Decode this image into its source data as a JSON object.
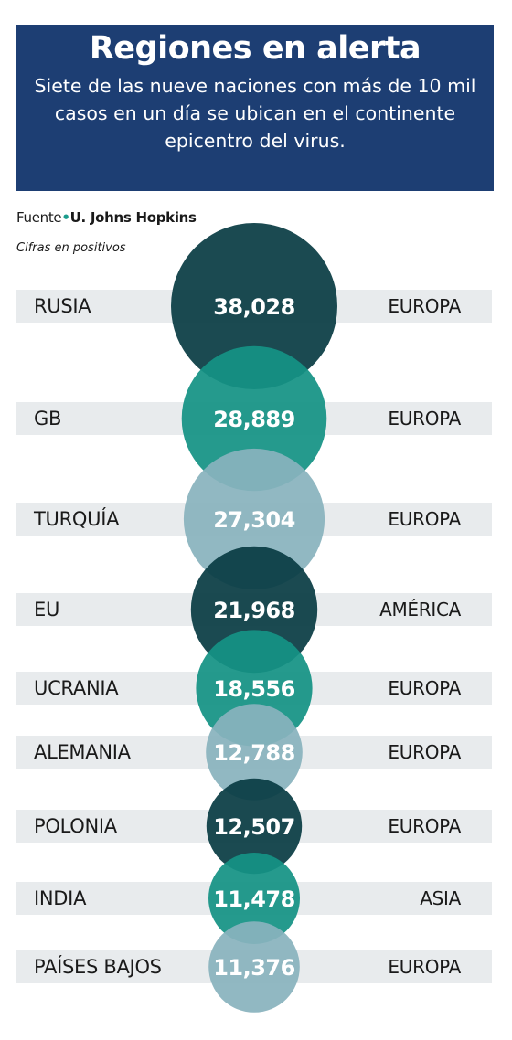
{
  "header": {
    "title": "Regiones en alerta",
    "subtitle": "Siete de las nueve naciones con más de 10 mil casos en un día se ubican en el continente epicentro del virus."
  },
  "source": {
    "label": "Fuente",
    "name": "U. Johns Hopkins"
  },
  "note": "Cifras en positivos",
  "colors": {
    "header_bg": "#1d3e73",
    "dark": "#0a3c44",
    "teal": "#149284",
    "light": "#89b3bd",
    "band": "#e8ebed"
  },
  "chart_data": {
    "type": "bubble",
    "title": "Regiones en alerta",
    "categories": [
      "RUSIA",
      "GB",
      "TURQUÍA",
      "EU",
      "UCRANIA",
      "ALEMANIA",
      "POLONIA",
      "INDIA",
      "PAÍSES BAJOS"
    ],
    "values": [
      38028,
      28889,
      27304,
      21968,
      18556,
      12788,
      12507,
      11478,
      11376
    ],
    "value_labels": [
      "38,028",
      "28,889",
      "27,304",
      "21,968",
      "18,556",
      "12,788",
      "12,507",
      "11,478",
      "11,376"
    ],
    "regions": [
      "EUROPA",
      "EUROPA",
      "EUROPA",
      "AMÉRICA",
      "EUROPA",
      "EUROPA",
      "EUROPA",
      "ASIA",
      "EUROPA"
    ],
    "color_keys": [
      "dark",
      "teal",
      "light",
      "dark",
      "teal",
      "light",
      "dark",
      "teal",
      "light"
    ]
  }
}
